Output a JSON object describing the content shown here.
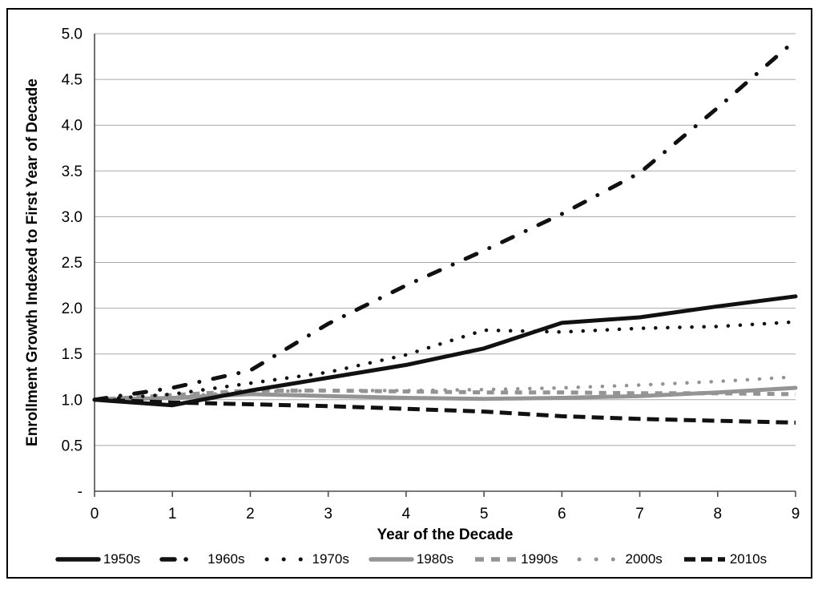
{
  "window": {
    "background": "#ffffff",
    "outer_border_color": "#000000"
  },
  "chart_data": {
    "type": "line",
    "title": "",
    "xlabel": "Year of the Decade",
    "ylabel": "Enrollment Growth Indexed to First Year of Decade",
    "x": [
      0,
      1,
      2,
      3,
      4,
      5,
      6,
      7,
      8,
      9
    ],
    "xlim": [
      0,
      9
    ],
    "ylim": [
      0,
      5
    ],
    "x_tick_labels": [
      "0",
      "1",
      "2",
      "3",
      "4",
      "5",
      "6",
      "7",
      "8",
      "9"
    ],
    "y_tick_values": [
      0,
      0.5,
      1,
      1.5,
      2,
      2.5,
      3,
      3.5,
      4,
      4.5,
      5
    ],
    "y_tick_labels": [
      "-",
      "0.5",
      "1.0",
      "1.5",
      "2.0",
      "2.5",
      "3.0",
      "3.5",
      "4.0",
      "4.5",
      "5.0"
    ],
    "grid": "horizontal gridlines every 0.5, on",
    "legend_position": "bottom",
    "colors": {
      "black_series": "#111111",
      "gray_series": "#949494",
      "gridline": "#a8a8a8",
      "axis": "#4d4d4d",
      "text": "#000000"
    },
    "series": [
      {
        "name": "1950s",
        "color": "#111111",
        "style": "solid",
        "values": [
          1.0,
          0.94,
          1.1,
          1.24,
          1.38,
          1.56,
          1.84,
          1.9,
          2.02,
          2.13
        ]
      },
      {
        "name": "1960s",
        "color": "#111111",
        "style": "dash-dot",
        "values": [
          1.0,
          1.13,
          1.32,
          1.83,
          2.25,
          2.63,
          3.03,
          3.48,
          4.19,
          4.93
        ]
      },
      {
        "name": "1970s",
        "color": "#111111",
        "style": "dotted",
        "values": [
          1.0,
          1.06,
          1.18,
          1.3,
          1.49,
          1.76,
          1.74,
          1.78,
          1.8,
          1.85
        ]
      },
      {
        "name": "1980s",
        "color": "#949494",
        "style": "solid",
        "values": [
          1.0,
          1.02,
          1.06,
          1.04,
          1.02,
          1.01,
          1.02,
          1.04,
          1.08,
          1.13
        ]
      },
      {
        "name": "1990s",
        "color": "#949494",
        "style": "dashed",
        "values": [
          1.0,
          1.05,
          1.1,
          1.1,
          1.09,
          1.08,
          1.08,
          1.07,
          1.07,
          1.06
        ]
      },
      {
        "name": "2000s",
        "color": "#949494",
        "style": "dotted",
        "values": [
          1.0,
          1.03,
          1.09,
          1.1,
          1.1,
          1.11,
          1.13,
          1.16,
          1.2,
          1.25
        ]
      },
      {
        "name": "2010s",
        "color": "#111111",
        "style": "long-dash",
        "values": [
          1.0,
          0.97,
          0.95,
          0.93,
          0.9,
          0.87,
          0.82,
          0.79,
          0.77,
          0.75
        ]
      }
    ]
  }
}
